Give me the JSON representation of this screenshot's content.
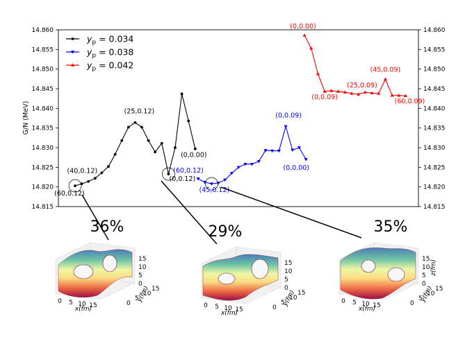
{
  "chart_data": {
    "type": "line",
    "ylabel": "G/N (MeV)",
    "ylim": [
      14.815,
      14.86
    ],
    "yticks": [
      "14.815",
      "14.820",
      "14.825",
      "14.830",
      "14.835",
      "14.840",
      "14.845",
      "14.850",
      "14.855",
      "14.860"
    ],
    "series": [
      {
        "name": "0.034",
        "color": "#000000",
        "marker": "circle",
        "values": [
          14.8203,
          14.8208,
          14.8214,
          14.8222,
          14.8236,
          14.8252,
          14.8283,
          14.8318,
          14.8352,
          14.8364,
          14.8352,
          14.8318,
          14.8289,
          14.8311,
          14.8233,
          14.83,
          14.8437,
          14.8368,
          14.8297
        ]
      },
      {
        "name": "0.038",
        "color": "#0000ff",
        "marker": "triangle-down",
        "values": [
          14.8221,
          14.8212,
          14.8208,
          14.821,
          14.8218,
          14.8235,
          14.825,
          14.8258,
          14.8258,
          14.8265,
          14.8293,
          14.8292,
          14.8292,
          14.8354,
          14.8294,
          14.83,
          14.827
        ]
      },
      {
        "name": "0.042",
        "color": "#ff0000",
        "marker": "triangle-up",
        "values": [
          14.8586,
          14.8553,
          14.8488,
          14.8443,
          14.8445,
          14.8443,
          14.8441,
          14.8438,
          14.8436,
          14.8441,
          14.8439,
          14.8438,
          14.8474,
          14.8433,
          14.8433,
          14.8432
        ]
      }
    ],
    "legend": {
      "prefix": "y",
      "sub": "p",
      "eq": " = ",
      "position": "top-left"
    },
    "annotations": [
      {
        "text": "(60,0.12)",
        "series": 0,
        "index": 0
      },
      {
        "text": "(40,0.12)",
        "series": 0,
        "index": 4
      },
      {
        "text": "(25,0.12)",
        "series": 0,
        "index": 9
      },
      {
        "text": "(0,0.12)",
        "series": 0,
        "index": 14
      },
      {
        "text": "(0,0.00)",
        "series": 0,
        "index": 18
      },
      {
        "text": "(60,0.12)",
        "series": 1,
        "index": 0
      },
      {
        "text": "(45,0.12)",
        "series": 1,
        "index": 2
      },
      {
        "text": "(0,0.09)",
        "series": 1,
        "index": 13
      },
      {
        "text": "(0,0.00)",
        "series": 1,
        "index": 16
      },
      {
        "text": "(0,0.00)",
        "series": 2,
        "index": 0
      },
      {
        "text": "(0,0.09)",
        "series": 2,
        "index": 3
      },
      {
        "text": "(25,0.09)",
        "series": 2,
        "index": 10
      },
      {
        "text": "(45,0.09)",
        "series": 2,
        "index": 12
      },
      {
        "text": "(60,0.09)",
        "series": 2,
        "index": 15
      }
    ],
    "highlights": [
      {
        "series": 0,
        "index": 0
      },
      {
        "series": 0,
        "index": 14
      },
      {
        "series": 1,
        "index": 2
      }
    ],
    "insets": [
      {
        "percent": "36%",
        "xlabel": "x(fm)",
        "ylabel": "y(fm)",
        "zlabel": "",
        "xticks": [
          "0",
          "5",
          "10",
          "15"
        ],
        "yticks": [
          "0",
          "5",
          "10",
          "15"
        ],
        "zticks": [
          "0",
          "5",
          "10",
          "15"
        ]
      },
      {
        "percent": "29%",
        "xlabel": "x(fm)",
        "ylabel": "y(fm)",
        "zlabel": "",
        "xticks": [
          "0",
          "5",
          "10",
          "15"
        ],
        "yticks": [
          "0",
          "5",
          "10",
          "15"
        ],
        "zticks": [
          "0",
          "5",
          "10",
          "15"
        ]
      },
      {
        "percent": "35%",
        "xlabel": "x(fm)",
        "ylabel": "y(fm)",
        "zlabel": "z(fm)",
        "xticks": [
          "0",
          "5",
          "10",
          "15"
        ],
        "yticks": [
          "0",
          "5",
          "10",
          "15"
        ],
        "zticks": [
          "0",
          "5",
          "10",
          "15"
        ]
      }
    ]
  }
}
